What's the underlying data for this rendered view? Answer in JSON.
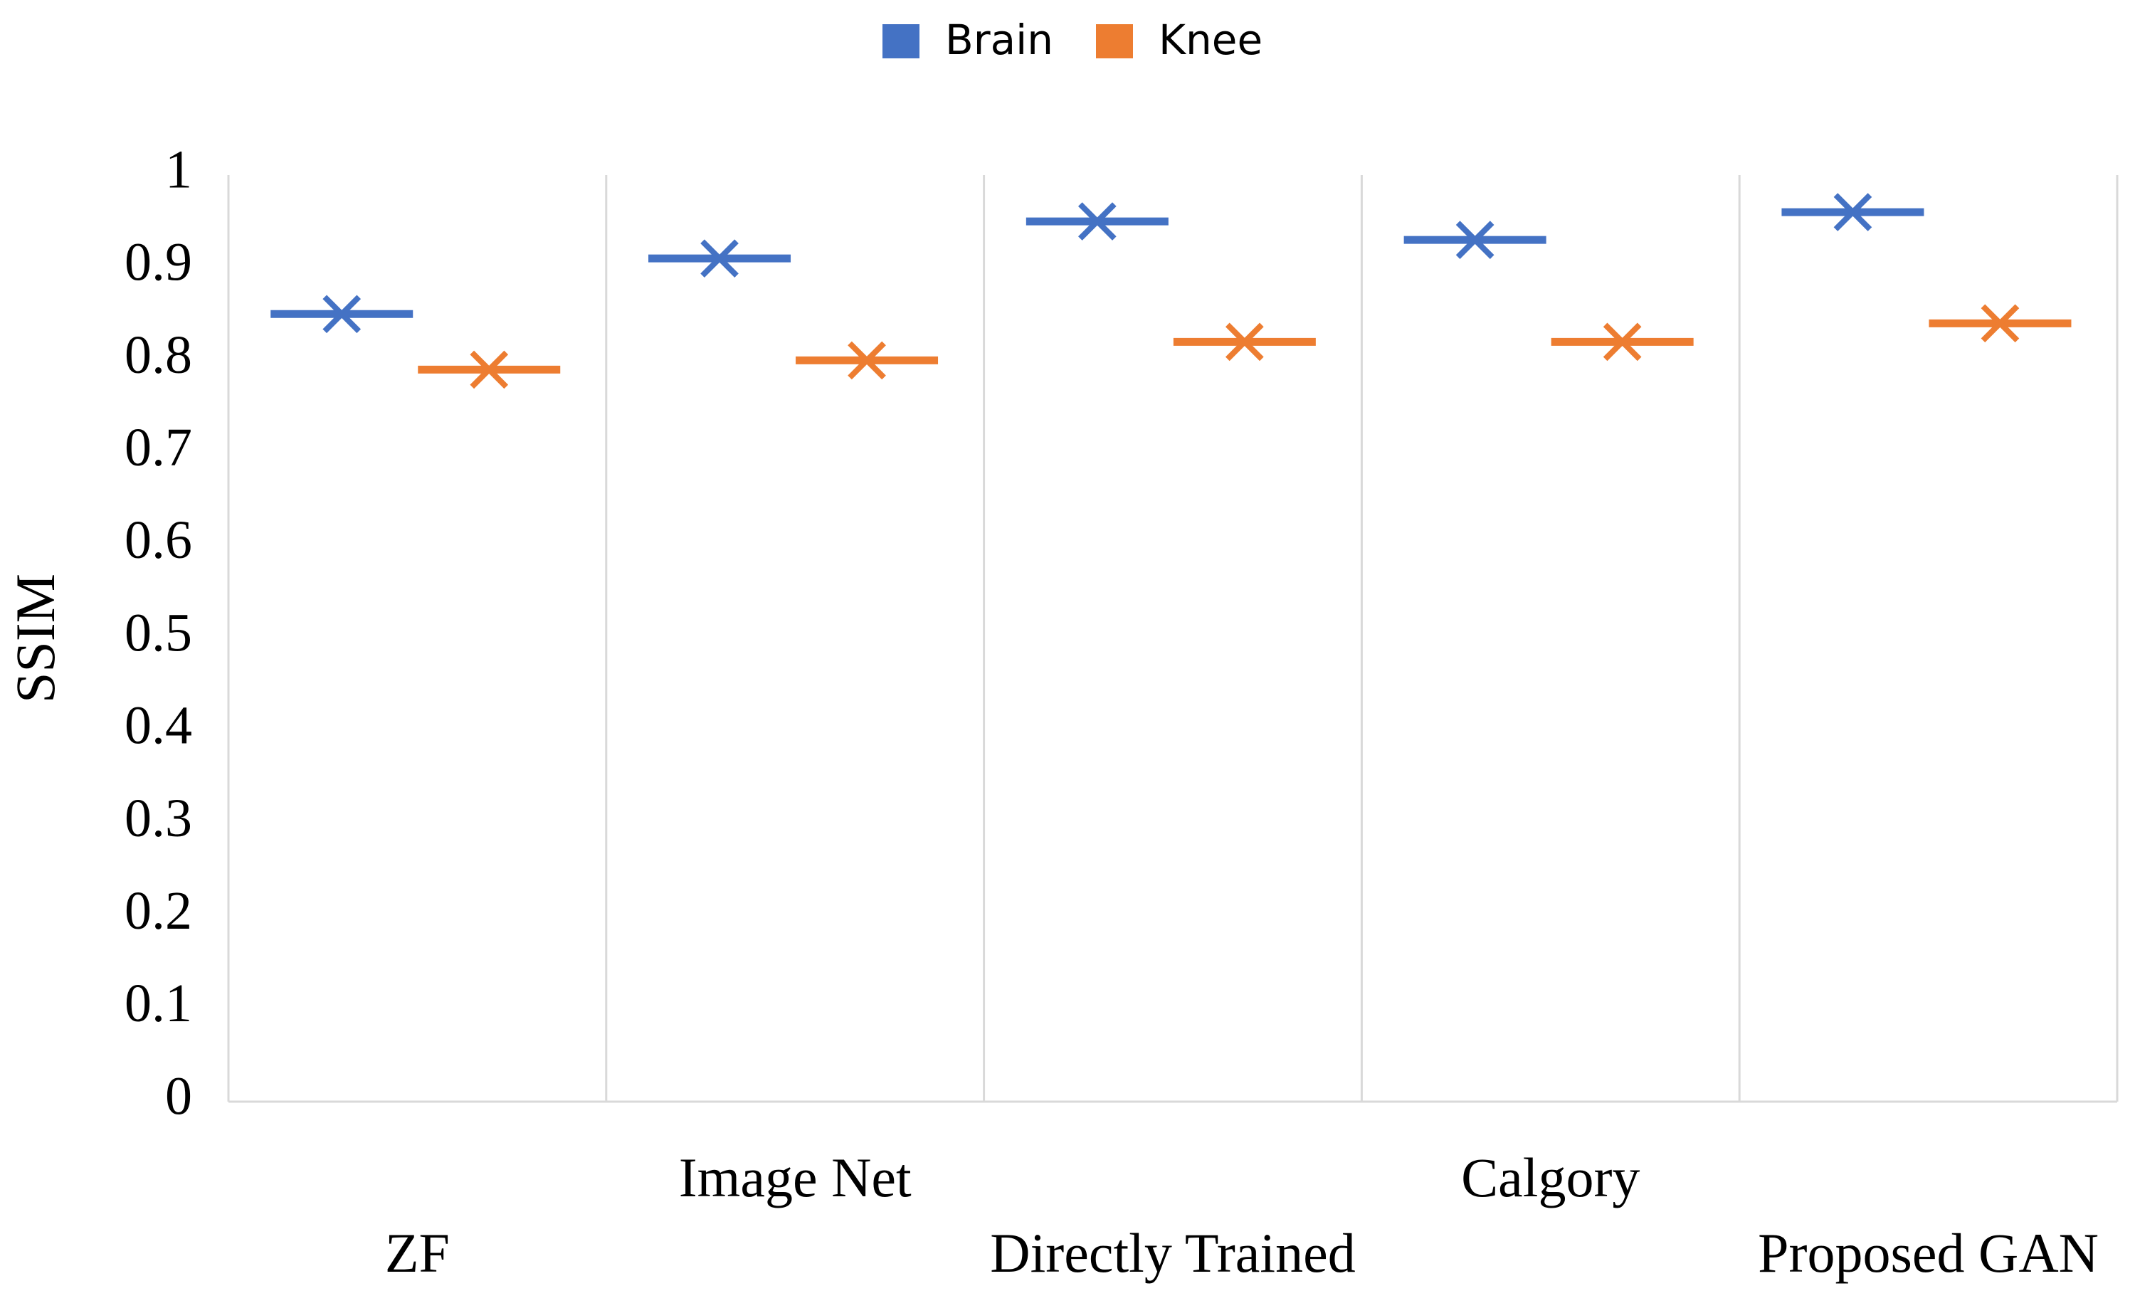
{
  "chart_data": {
    "type": "scatter",
    "categories": [
      "ZF",
      "Image Net",
      "Directly Trained",
      "Calgory",
      "Proposed GAN"
    ],
    "series": [
      {
        "name": "Brain",
        "color": "#4472c4",
        "values": [
          0.85,
          0.91,
          0.95,
          0.93,
          0.96
        ]
      },
      {
        "name": "Knee",
        "color": "#ed7d31",
        "values": [
          0.79,
          0.8,
          0.82,
          0.82,
          0.84
        ]
      }
    ],
    "y_label": "SSIM",
    "ylim": [
      0,
      1
    ],
    "yticks": [
      0,
      0.1,
      0.2,
      0.3,
      0.4,
      0.5,
      0.6,
      0.7,
      0.8,
      0.9,
      1
    ],
    "legend": "top"
  }
}
